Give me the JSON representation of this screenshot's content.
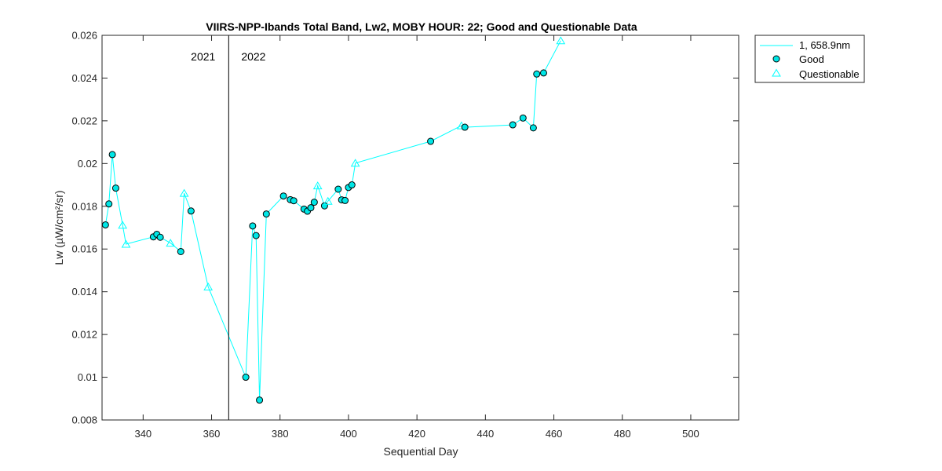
{
  "chart_data": {
    "type": "line",
    "title": "VIIRS-NPP-Ibands Total Band,  Lw2, MOBY HOUR: 22;  Good and Questionable Data",
    "xlabel": "Sequential Day",
    "ylabel": "Lw (µW/cm²/sr)",
    "xlim": [
      328,
      514
    ],
    "ylim": [
      0.008,
      0.026
    ],
    "xticks": [
      340,
      360,
      380,
      400,
      420,
      440,
      460,
      480,
      500
    ],
    "yticks": [
      0.008,
      0.01,
      0.012,
      0.014,
      0.016,
      0.018,
      0.02,
      0.022,
      0.024,
      0.026
    ],
    "xtick_labels": [
      "340",
      "360",
      "380",
      "400",
      "420",
      "440",
      "460",
      "480",
      "500"
    ],
    "ytick_labels": [
      "0.008",
      "0.01",
      "0.012",
      "0.014",
      "0.016",
      "0.018",
      "0.02",
      "0.022",
      "0.024",
      "0.026"
    ],
    "year_divider": {
      "x": 365,
      "left_label": "2021",
      "right_label": "2022"
    },
    "legend_position": "outside-top-right",
    "grid": false,
    "colors": {
      "series": "#00ffff",
      "marker_good_fill": "#00e6e6",
      "marker_edge": "#000000"
    },
    "series": [
      {
        "name": "1, 658.9nm",
        "points": [
          [
            329,
            0.01713,
            "good"
          ],
          [
            330,
            0.01811,
            "good"
          ],
          [
            331,
            0.02042,
            "good"
          ],
          [
            332,
            0.01885,
            "good"
          ],
          [
            334,
            0.01712,
            "questionable"
          ],
          [
            335,
            0.01623,
            "questionable"
          ],
          [
            343,
            0.01657,
            "good"
          ],
          [
            344,
            0.01669,
            "good"
          ],
          [
            345,
            0.01655,
            "good"
          ],
          [
            348,
            0.01628,
            "questionable"
          ],
          [
            351,
            0.01588,
            "good"
          ],
          [
            352,
            0.01861,
            "questionable"
          ],
          [
            354,
            0.01778,
            "good"
          ],
          [
            359,
            0.01423,
            "questionable"
          ],
          [
            370,
            0.01,
            "good"
          ],
          [
            372,
            0.01708,
            "good"
          ],
          [
            373,
            0.01663,
            "good"
          ],
          [
            374,
            0.00893,
            "good"
          ],
          [
            376,
            0.01764,
            "good"
          ],
          [
            381,
            0.01848,
            "good"
          ],
          [
            383,
            0.01831,
            "good"
          ],
          [
            384,
            0.01826,
            "good"
          ],
          [
            387,
            0.01787,
            "good"
          ],
          [
            388,
            0.01777,
            "good"
          ],
          [
            389,
            0.01793,
            "good"
          ],
          [
            390,
            0.01819,
            "good"
          ],
          [
            391,
            0.01896,
            "questionable"
          ],
          [
            393,
            0.01802,
            "good"
          ],
          [
            394,
            0.01824,
            "questionable"
          ],
          [
            397,
            0.0188,
            "good"
          ],
          [
            398,
            0.0183,
            "good"
          ],
          [
            399,
            0.01827,
            "good"
          ],
          [
            400,
            0.01888,
            "good"
          ],
          [
            401,
            0.019,
            "good"
          ],
          [
            402,
            0.02002,
            "questionable"
          ],
          [
            424,
            0.02104,
            "good"
          ],
          [
            433,
            0.02177,
            "questionable"
          ],
          [
            434,
            0.0217,
            "good"
          ],
          [
            448,
            0.02181,
            "good"
          ],
          [
            451,
            0.02213,
            "good"
          ],
          [
            454,
            0.02167,
            "good"
          ],
          [
            455,
            0.02419,
            "good"
          ],
          [
            457,
            0.02424,
            "good"
          ],
          [
            462,
            0.02575,
            "questionable"
          ]
        ]
      }
    ],
    "legend": {
      "line_label": "1, 658.9nm",
      "good_label": "Good",
      "questionable_label": "Questionable"
    }
  }
}
